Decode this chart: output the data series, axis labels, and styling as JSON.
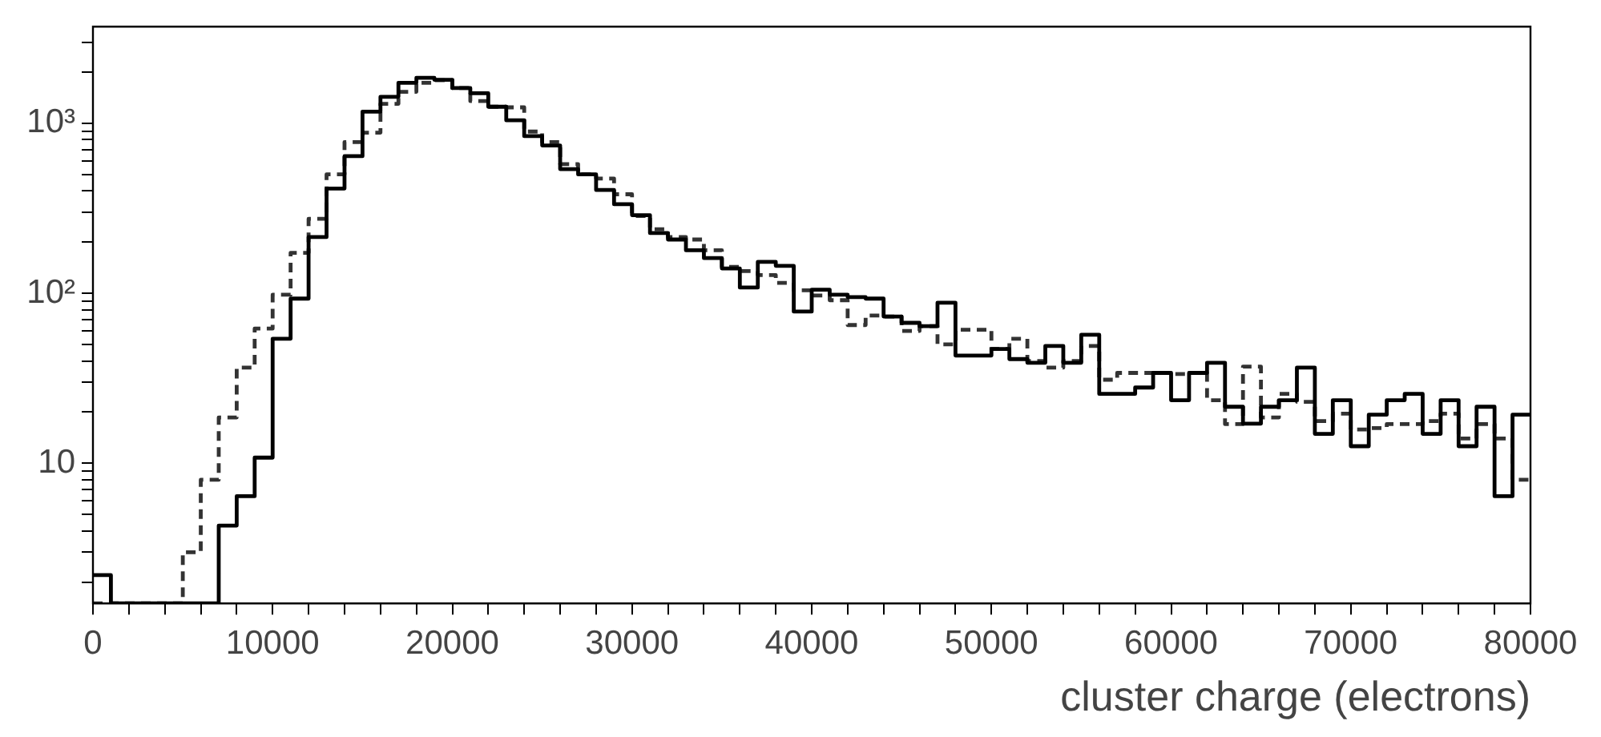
{
  "chart_data": {
    "type": "histogram",
    "xlabel": "cluster charge (electrons)",
    "bins": [
      0,
      1000,
      2000,
      3000,
      4000,
      5000,
      6000,
      7000,
      8000,
      9000,
      10000,
      11000,
      12000,
      13000,
      14000,
      15000,
      16000,
      17000,
      18000,
      19000,
      20000,
      21000,
      22000,
      23000,
      24000,
      25000,
      26000,
      27000,
      28000,
      29000,
      30000,
      31000,
      32000,
      33000,
      34000,
      35000,
      36000,
      37000,
      38000,
      39000,
      40000,
      41000,
      42000,
      43000,
      44000,
      45000,
      46000,
      47000,
      48000,
      49000,
      50000,
      51000,
      52000,
      53000,
      54000,
      55000,
      56000,
      57000,
      58000,
      59000,
      60000,
      61000,
      62000,
      63000,
      64000,
      65000,
      66000,
      67000,
      68000,
      69000,
      70000,
      71000,
      72000,
      73000,
      74000,
      75000,
      76000,
      77000,
      78000,
      79000,
      80000
    ],
    "series": [
      {
        "color": "#000000",
        "line_style": "solid",
        "values": [
          2.2,
          null,
          null,
          null,
          null,
          null,
          null,
          4.3,
          6.4,
          10.8,
          54,
          93,
          214,
          413,
          640,
          1170,
          1430,
          1730,
          1850,
          1800,
          1610,
          1500,
          1250,
          1040,
          840,
          740,
          537,
          500,
          405,
          334,
          288,
          226,
          207,
          179,
          161,
          140,
          108,
          153,
          145,
          78,
          105,
          98,
          95,
          93,
          73,
          67,
          64,
          88,
          43,
          43,
          47,
          41,
          39,
          49,
          39,
          57,
          25.6,
          25.6,
          27.9,
          34,
          23.5,
          34,
          39,
          21.5,
          17.1,
          21.5,
          23.5,
          36.5,
          14.9,
          23.5,
          12.6,
          19.3,
          23.5,
          25.6,
          14.9,
          23.5,
          12.6,
          21.5,
          6.4,
          19.3
        ]
      },
      {
        "color": "#333333",
        "line_style": "dashed",
        "values": [
          null,
          null,
          null,
          null,
          null,
          3,
          8,
          18.6,
          36.5,
          62,
          98,
          173,
          274,
          500,
          775,
          880,
          1300,
          1530,
          1730,
          1790,
          1610,
          1350,
          1250,
          1240,
          893,
          775,
          575,
          500,
          473,
          382,
          285,
          238,
          214,
          207,
          179,
          143,
          135,
          128,
          115,
          104,
          97,
          91,
          65,
          74,
          73,
          60,
          64,
          50,
          61,
          61,
          47,
          54,
          40,
          36.5,
          40,
          49,
          31,
          34,
          34,
          34,
          33.5,
          34,
          23.5,
          17,
          37,
          18.6,
          25.6,
          23,
          17.7,
          19.6,
          15.8,
          16.1,
          17,
          17,
          17.7,
          19.6,
          14,
          17,
          14,
          8
        ]
      }
    ],
    "log": "y",
    "grid": false,
    "legend": false,
    "xlim": [
      0,
      80000
    ],
    "xticks": [
      0,
      {
        "value": 2000,
        "label": null
      },
      {
        "value": 4000,
        "label": null
      },
      {
        "value": 6000,
        "label": null
      },
      {
        "value": 8000,
        "label": null
      },
      10000,
      {
        "value": 12000,
        "label": null
      },
      {
        "value": 14000,
        "label": null
      },
      {
        "value": 16000,
        "label": null
      },
      {
        "value": 18000,
        "label": null
      },
      20000,
      {
        "value": 22000,
        "label": null
      },
      {
        "value": 24000,
        "label": null
      },
      {
        "value": 26000,
        "label": null
      },
      {
        "value": 28000,
        "label": null
      },
      30000,
      {
        "value": 32000,
        "label": null
      },
      {
        "value": 34000,
        "label": null
      },
      {
        "value": 36000,
        "label": null
      },
      {
        "value": 38000,
        "label": null
      },
      40000,
      {
        "value": 42000,
        "label": null
      },
      {
        "value": 44000,
        "label": null
      },
      {
        "value": 46000,
        "label": null
      },
      {
        "value": 48000,
        "label": null
      },
      50000,
      {
        "value": 52000,
        "label": null
      },
      {
        "value": 54000,
        "label": null
      },
      {
        "value": 56000,
        "label": null
      },
      {
        "value": 58000,
        "label": null
      },
      60000,
      {
        "value": 62000,
        "label": null
      },
      {
        "value": 64000,
        "label": null
      },
      {
        "value": 66000,
        "label": null
      },
      {
        "value": 68000,
        "label": null
      },
      70000,
      {
        "value": 72000,
        "label": null
      },
      {
        "value": 74000,
        "label": null
      },
      {
        "value": 76000,
        "label": null
      },
      {
        "value": 78000,
        "label": null
      },
      80000
    ],
    "ylim": [
      1.5,
      3700
    ],
    "yticks": [
      {
        "value": 2,
        "label": null
      },
      {
        "value": 3,
        "label": null
      },
      {
        "value": 4,
        "label": null
      },
      {
        "value": 5,
        "label": null
      },
      {
        "value": 6,
        "label": null
      },
      {
        "value": 7,
        "label": null
      },
      {
        "value": 8,
        "label": null
      },
      {
        "value": 9,
        "label": null
      },
      10,
      {
        "value": 20,
        "label": null
      },
      {
        "value": 30,
        "label": null
      },
      {
        "value": 40,
        "label": null
      },
      {
        "value": 50,
        "label": null
      },
      {
        "value": 60,
        "label": null
      },
      {
        "value": 70,
        "label": null
      },
      {
        "value": 80,
        "label": null
      },
      {
        "value": 90,
        "label": null
      },
      {
        "value": 100,
        "label": "10²"
      },
      {
        "value": 200,
        "label": null
      },
      {
        "value": 300,
        "label": null
      },
      {
        "value": 400,
        "label": null
      },
      {
        "value": 500,
        "label": null
      },
      {
        "value": 600,
        "label": null
      },
      {
        "value": 700,
        "label": null
      },
      {
        "value": 800,
        "label": null
      },
      {
        "value": 900,
        "label": null
      },
      {
        "value": 1000,
        "label": "10³"
      },
      {
        "value": 2000,
        "label": null
      },
      {
        "value": 3000,
        "label": null
      }
    ]
  }
}
